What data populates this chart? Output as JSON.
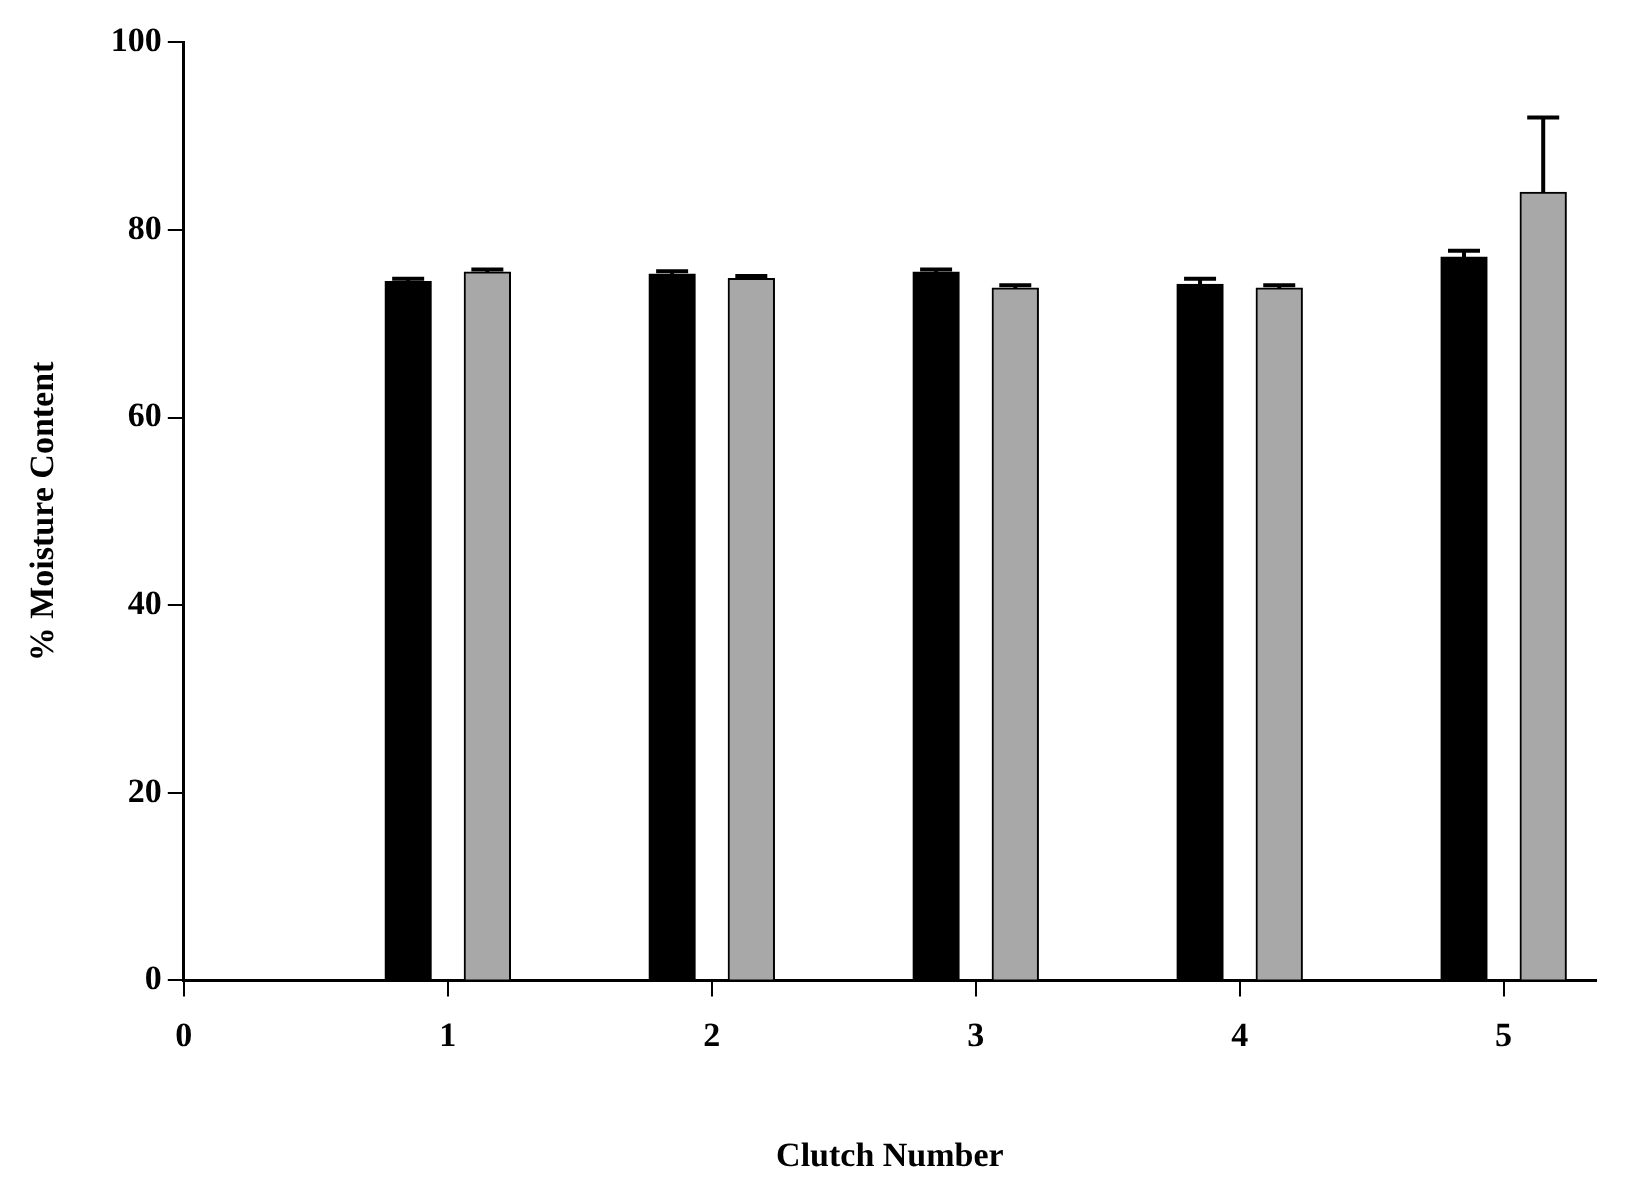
{
  "chart_data": {
    "type": "bar",
    "xlabel": "Clutch Number",
    "ylabel": "% Moisture Content",
    "series": [
      {
        "color": "#000000",
        "x": [
          0.85,
          1.85,
          2.85,
          3.85,
          4.85
        ],
        "values": [
          74.5,
          75.3,
          75.5,
          74.2,
          77.1
        ],
        "errors": [
          0.3,
          0.3,
          0.3,
          0.6,
          0.7
        ]
      },
      {
        "color": "#a8a8a8",
        "x": [
          1.15,
          2.15,
          3.15,
          4.15,
          5.15
        ],
        "values": [
          75.5,
          74.8,
          73.8,
          73.8,
          84
        ],
        "errors": [
          0.3,
          0.3,
          0.3,
          0.3,
          8
        ]
      }
    ],
    "xlim": [
      0,
      5.35
    ],
    "xticks": [
      0,
      1,
      2,
      3,
      4,
      5
    ],
    "ylim": [
      0,
      100
    ],
    "yticks": [
      0,
      20,
      40,
      60,
      80,
      100
    ],
    "grid": false,
    "legend": false
  }
}
